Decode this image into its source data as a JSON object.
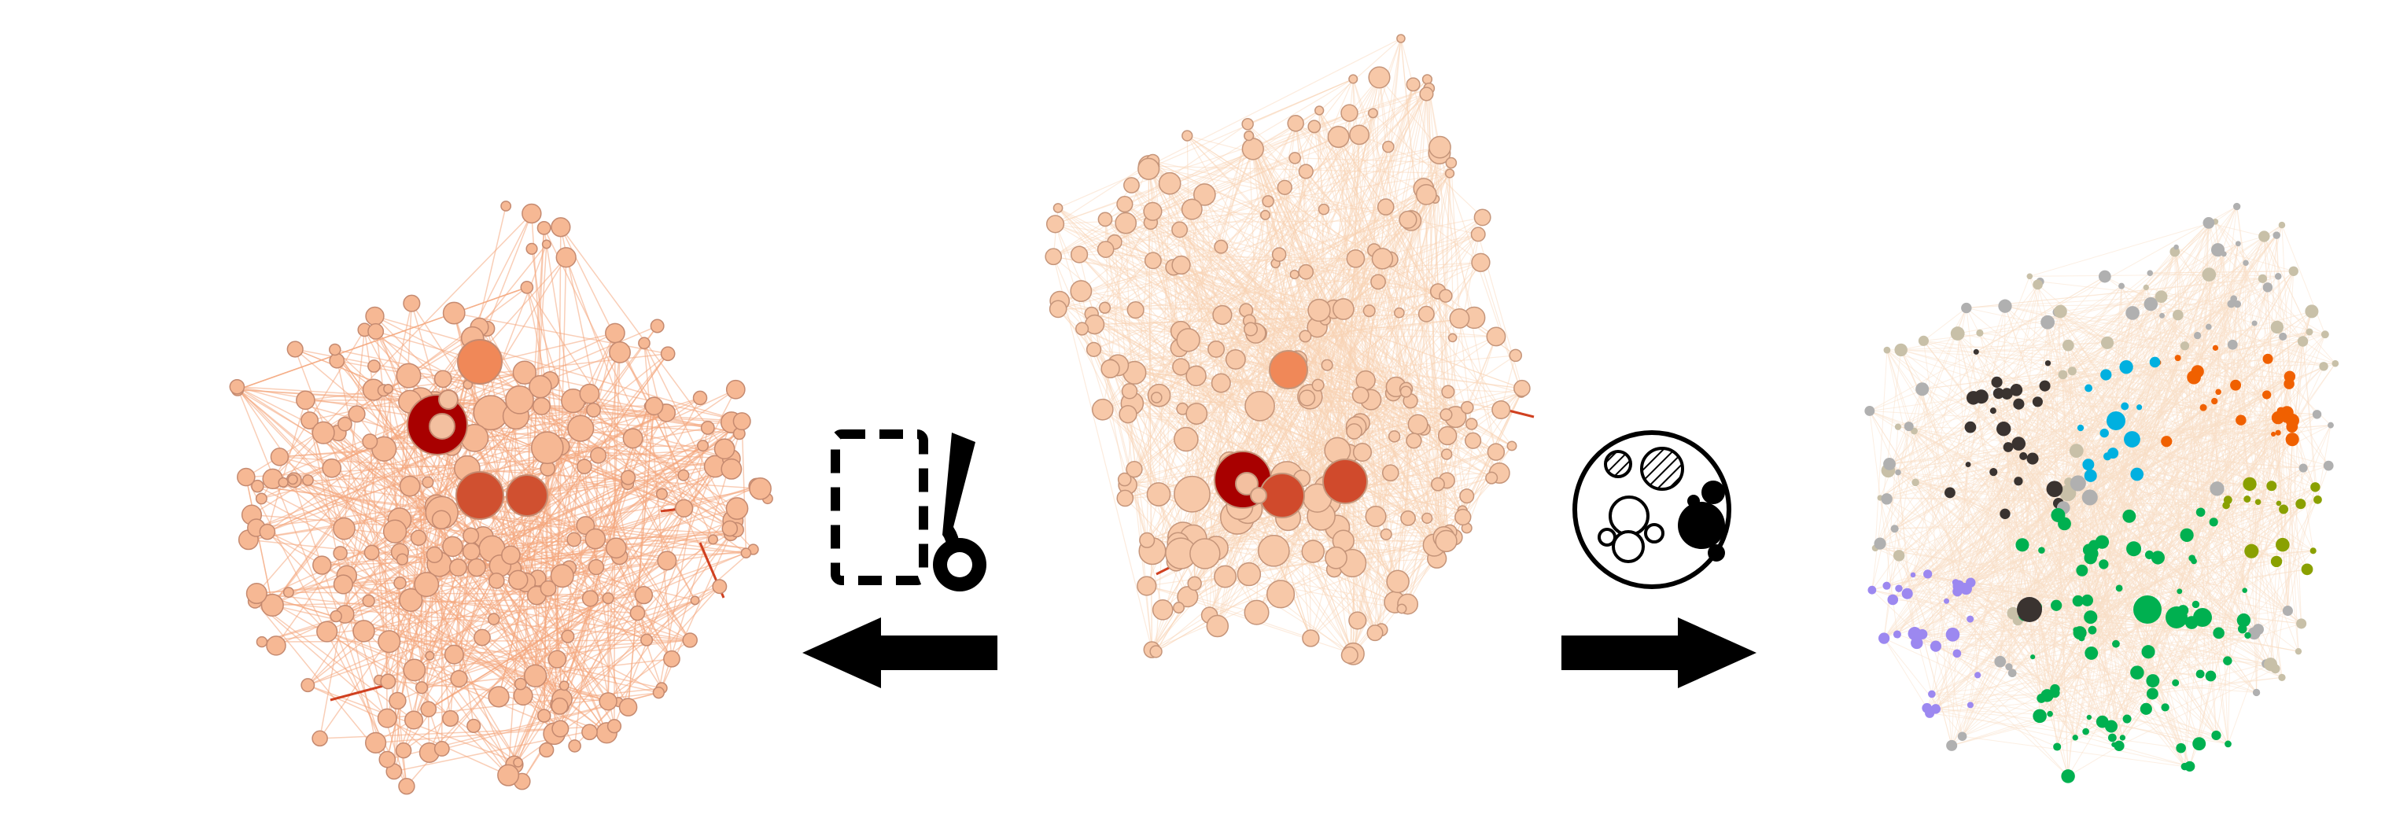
{
  "figure": {
    "panels": [
      {
        "id": "left",
        "role": "filtered network",
        "node_color": "#f6b894",
        "edge_color": "#f4a57c",
        "hub_color": "#a80000"
      },
      {
        "id": "center",
        "role": "original network",
        "node_color": "#f7c8a8",
        "edge_color": "#f8d3b4",
        "hub_color": "#a80000"
      },
      {
        "id": "right",
        "role": "community network",
        "edge_color": "#f9dfc8"
      }
    ],
    "operations": [
      {
        "id": "filter",
        "icon": "scissors-icon",
        "arrow": "left"
      },
      {
        "id": "community",
        "icon": "circle-packing-icon",
        "arrow": "right"
      }
    ],
    "community_colors": [
      "#00b050",
      "#00b0e0",
      "#f06000",
      "#3a3330",
      "#8aa000",
      "#9c88f0",
      "#b0b0b0",
      "#c8c0a8"
    ]
  }
}
